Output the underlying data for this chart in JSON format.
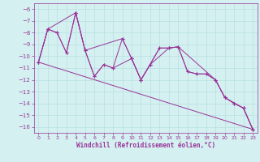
{
  "xlabel": "Windchill (Refroidissement éolien,°C)",
  "background_color": "#d4f0f0",
  "grid_color": "#b8e0e0",
  "line_color": "#993399",
  "ylim": [
    -16.5,
    -5.5
  ],
  "xlim": [
    -0.5,
    23.5
  ],
  "yticks": [
    -16,
    -15,
    -14,
    -13,
    -12,
    -11,
    -10,
    -9,
    -8,
    -7,
    -6
  ],
  "xticks": [
    0,
    1,
    2,
    3,
    4,
    5,
    6,
    7,
    8,
    9,
    10,
    11,
    12,
    13,
    14,
    15,
    16,
    17,
    18,
    19,
    20,
    21,
    22,
    23
  ],
  "series1_x": [
    0,
    1,
    2,
    3,
    4,
    5,
    6,
    7,
    8,
    9,
    10,
    11,
    12,
    13,
    14,
    15,
    16,
    17,
    18,
    19,
    20,
    21,
    22,
    23
  ],
  "series1_y": [
    -10.5,
    -7.7,
    -8.0,
    -9.7,
    -6.3,
    -9.5,
    -11.7,
    -10.7,
    -11.0,
    -8.5,
    -10.2,
    -12.0,
    -10.7,
    -9.3,
    -9.3,
    -9.2,
    -11.3,
    -11.5,
    -11.5,
    -12.0,
    -13.5,
    -14.0,
    -14.4,
    -16.2
  ],
  "series2_x": [
    0,
    1,
    2,
    3,
    4,
    5,
    9,
    10,
    11,
    13,
    14,
    15,
    16,
    17,
    18,
    19,
    20,
    21,
    22,
    23
  ],
  "series2_y": [
    -10.5,
    -7.7,
    -8.0,
    -9.7,
    -6.3,
    -9.5,
    -8.5,
    -10.2,
    -12.0,
    -9.3,
    -9.3,
    -9.2,
    -11.3,
    -11.5,
    -11.5,
    -12.0,
    -13.5,
    -14.0,
    -14.4,
    -16.2
  ],
  "series3_x": [
    0,
    23
  ],
  "series3_y": [
    -10.5,
    -16.2
  ],
  "series4_x": [
    0,
    1,
    4,
    5,
    6,
    7,
    8,
    10,
    11,
    12,
    14,
    15,
    19,
    20,
    22,
    23
  ],
  "series4_y": [
    -10.5,
    -7.7,
    -6.3,
    -9.5,
    -11.7,
    -10.7,
    -11.0,
    -10.2,
    -12.0,
    -10.7,
    -9.3,
    -9.2,
    -12.0,
    -13.5,
    -14.4,
    -16.2
  ]
}
